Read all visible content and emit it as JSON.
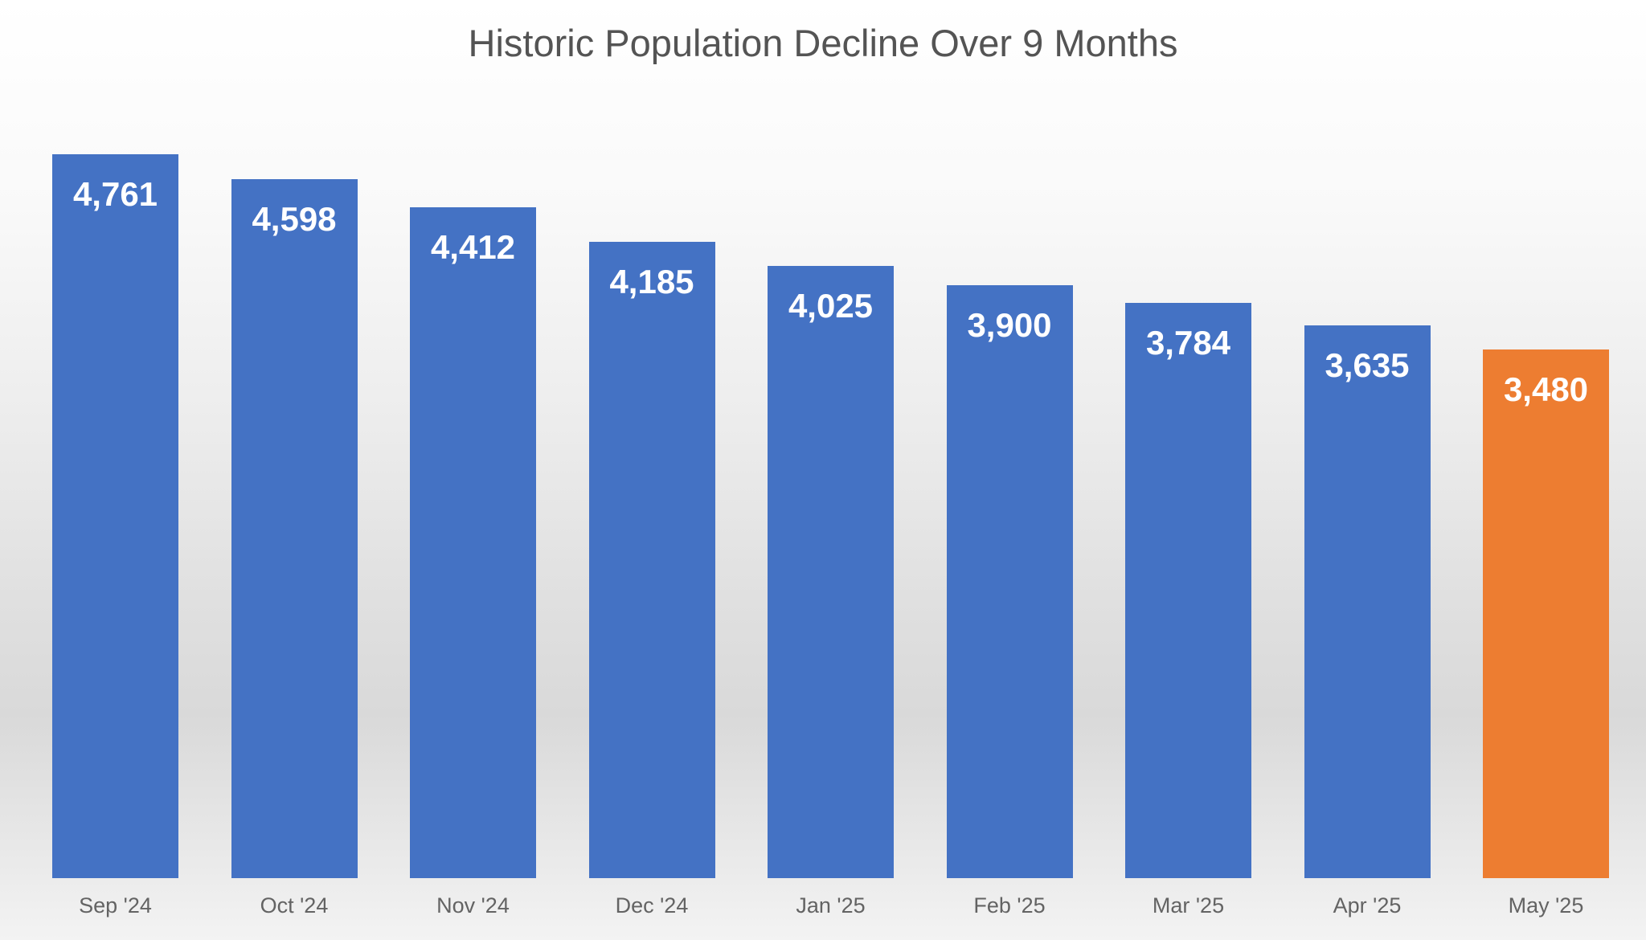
{
  "chart_data": {
    "type": "bar",
    "title": "Historic Population Decline Over 9 Months",
    "categories": [
      "Sep '24",
      "Oct '24",
      "Nov '24",
      "Dec '24",
      "Jan '25",
      "Feb '25",
      "Mar '25",
      "Apr '25",
      "May '25"
    ],
    "values": [
      4761,
      4598,
      4412,
      4185,
      4025,
      3900,
      3784,
      3635,
      3480
    ],
    "value_labels": [
      "4,761",
      "4,598",
      "4,412",
      "4,185",
      "4,025",
      "3,900",
      "3,784",
      "3,635",
      "3,480"
    ],
    "highlight_index": 8,
    "xlabel": "",
    "ylabel": "",
    "ylim": [
      0,
      5000
    ],
    "grid": false,
    "legend": false,
    "colors": {
      "bar": "#4472C4",
      "highlight_bar": "#ED7D31",
      "value_label": "#ffffff",
      "axis_label": "#636363",
      "title": "#545454"
    }
  }
}
